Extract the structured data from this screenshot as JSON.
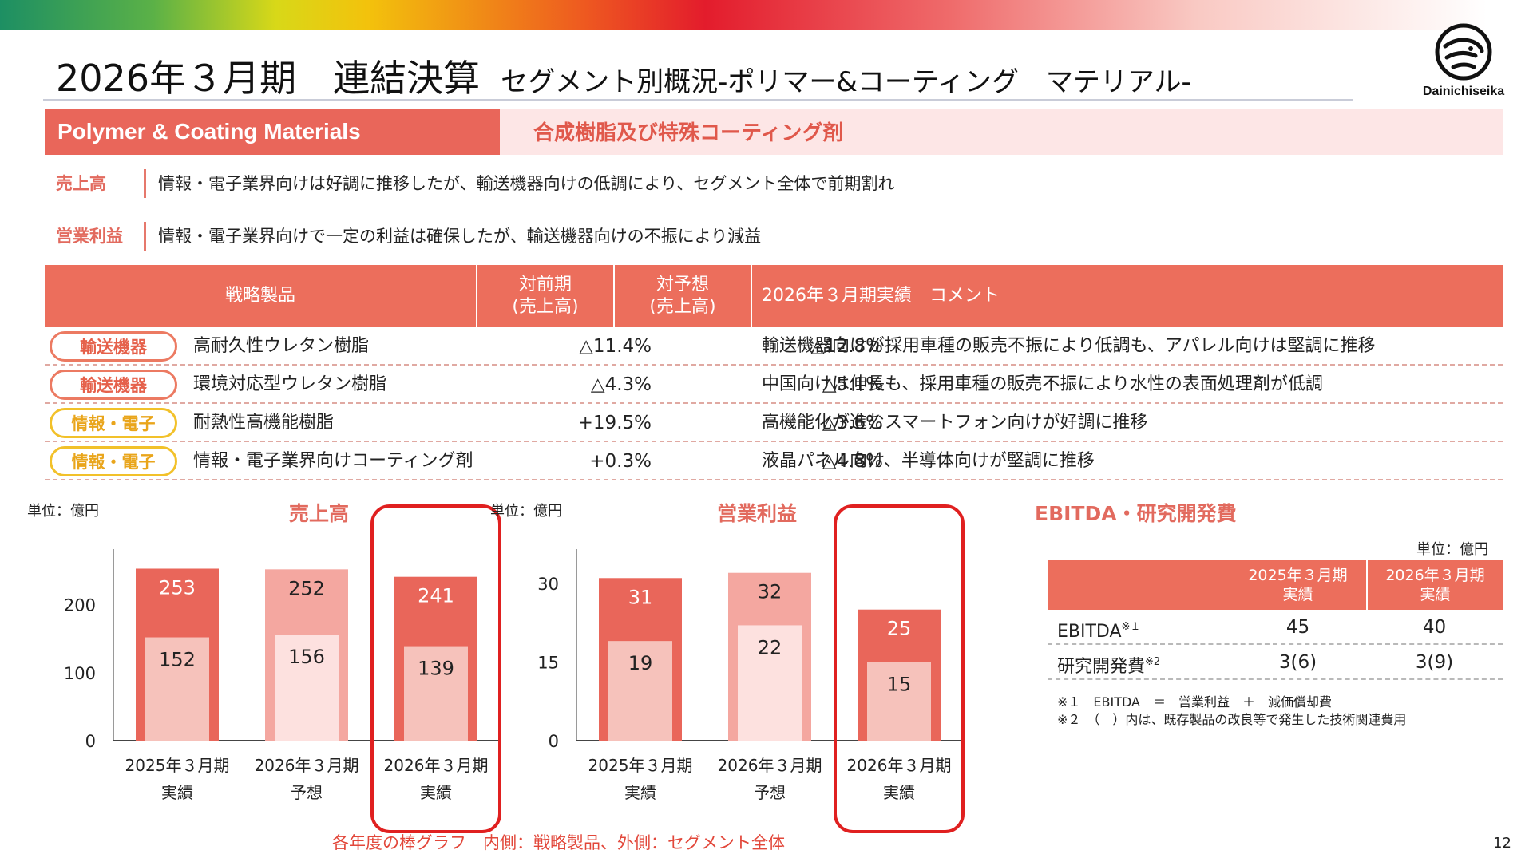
{
  "header": {
    "title_main": "2026年３月期　連結決算",
    "title_sub": "セグメント別概況-ポリマー&コーティング　マテリアル-",
    "logo_text": "Dainichiseika"
  },
  "segment": {
    "name_en": "Polymer & Coating Materials",
    "name_jp": "合成樹脂及び特殊コーティング剤"
  },
  "summary": [
    {
      "label": "売上高",
      "text": "情報・電子業界向けは好調に推移したが、輸送機器向けの低調により、セグメント全体で前期割れ"
    },
    {
      "label": "営業利益",
      "text": "情報・電子業界向けで一定の利益は確保したが、輸送機器向けの不振により減益"
    }
  ],
  "products_table": {
    "headers": [
      "戦略製品",
      "対前期\n(売上高)",
      "対予想\n(売上高)",
      "2026年３月期実績　コメント"
    ],
    "rows": [
      {
        "tag": "輸送機器",
        "product": "高耐久性ウレタン樹脂",
        "vs_prev": "△11.4%",
        "vs_forecast": "△12.8%",
        "comment": "輸送機器向けが採用車種の販売不振により低調も、アパレル向けは堅調に推移"
      },
      {
        "tag": "輸送機器",
        "product": "環境対応型ウレタン樹脂",
        "vs_prev": "△4.3%",
        "vs_forecast": "△5.1%",
        "comment": "中国向けは伸長も、採用車種の販売不振により水性の表面処理剤が低調"
      },
      {
        "tag": "情報・電子",
        "product": "耐熱性高機能樹脂",
        "vs_prev": "+19.5%",
        "vs_forecast": "△3.6%",
        "comment": "高機能化が進むスマートフォン向けが好調に推移"
      },
      {
        "tag": "情報・電子",
        "product": "情報・電子業界向けコーティング剤",
        "vs_prev": "+0.3%",
        "vs_forecast": "△4.8%",
        "comment": "液晶パネル向け、半導体向けが堅調に推移"
      }
    ]
  },
  "chart_data": [
    {
      "type": "bar",
      "title": "売上高",
      "unit": "単位：億円",
      "categories": [
        "2025年３月期\n実績",
        "2026年３月期\n予想",
        "2026年３月期\n実績"
      ],
      "series": [
        {
          "name": "外側：セグメント全体",
          "values": [
            253,
            252,
            241
          ]
        },
        {
          "name": "内側：戦略製品",
          "values": [
            152,
            156,
            139
          ]
        }
      ],
      "y_ticks": [
        0,
        100,
        200
      ],
      "ylim": [
        0,
        270
      ],
      "highlight_index": 2
    },
    {
      "type": "bar",
      "title": "営業利益",
      "unit": "単位：億円",
      "categories": [
        "2025年３月期\n実績",
        "2026年３月期\n予想",
        "2026年３月期\n実績"
      ],
      "series": [
        {
          "name": "外側：セグメント全体",
          "values": [
            31,
            32,
            25
          ]
        },
        {
          "name": "内側：戦略製品",
          "values": [
            19,
            22,
            15
          ]
        }
      ],
      "y_ticks": [
        0,
        15,
        30
      ],
      "ylim": [
        0,
        35
      ],
      "highlight_index": 2
    }
  ],
  "chart_note": "各年度の棒グラフ　内側：戦略製品、外側：セグメント全体",
  "colors": {
    "accent": "#ec6e5c",
    "actual_outer": "#e9665a",
    "actual_inner": "#f6c2bb",
    "forecast_outer": "#f4a7a0",
    "forecast_inner": "#fde1df",
    "highlight": "#e02020",
    "transport_tag": "#ec7a62",
    "info_tag": "#f2c12a"
  },
  "ebitda": {
    "title": "EBITDA・研究開発費",
    "unit": "単位：億円",
    "headers": [
      "2025年３月期\n実績",
      "2026年３月期\n実績"
    ],
    "rows": [
      {
        "label": "EBITDA",
        "mark": "※１",
        "v2025": "45",
        "v2026": "40"
      },
      {
        "label": "研究開発費",
        "mark": "※2",
        "v2025": "3(6)",
        "v2026": "3(9)"
      }
    ],
    "notes": [
      "※１　EBITDA　＝　営業利益　＋　減価償却費",
      "※２　（　）内は、既存製品の改良等で発生した技術関連費用"
    ]
  },
  "page_number": "12"
}
